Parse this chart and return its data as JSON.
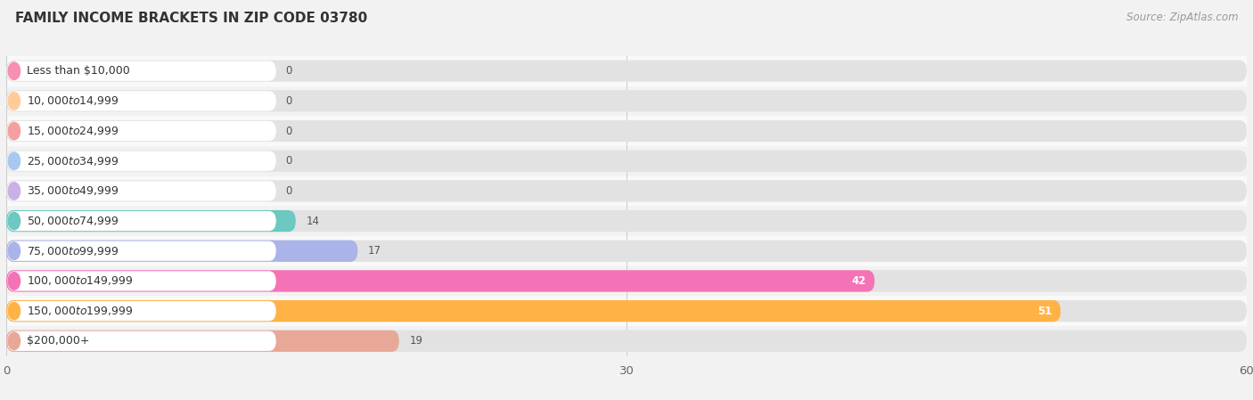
{
  "title": "FAMILY INCOME BRACKETS IN ZIP CODE 03780",
  "source": "Source: ZipAtlas.com",
  "categories": [
    "Less than $10,000",
    "$10,000 to $14,999",
    "$15,000 to $24,999",
    "$25,000 to $34,999",
    "$35,000 to $49,999",
    "$50,000 to $74,999",
    "$75,000 to $99,999",
    "$100,000 to $149,999",
    "$150,000 to $199,999",
    "$200,000+"
  ],
  "values": [
    0,
    0,
    0,
    0,
    0,
    14,
    17,
    42,
    51,
    19
  ],
  "bar_colors": [
    "#f78fb3",
    "#ffcc99",
    "#f4a0a0",
    "#a8c8f0",
    "#c9b1e8",
    "#6cc8c0",
    "#aab4e8",
    "#f472b6",
    "#ffb347",
    "#e8a898"
  ],
  "xlim_data": [
    0,
    60
  ],
  "xticks": [
    0,
    30,
    60
  ],
  "background_color": "#f2f2f2",
  "bar_bg_color": "#e2e2e2",
  "row_bg_colors": [
    "#f9f9f9",
    "#f2f2f2"
  ],
  "title_fontsize": 11,
  "source_fontsize": 8.5,
  "label_fontsize": 9,
  "value_fontsize": 8.5
}
